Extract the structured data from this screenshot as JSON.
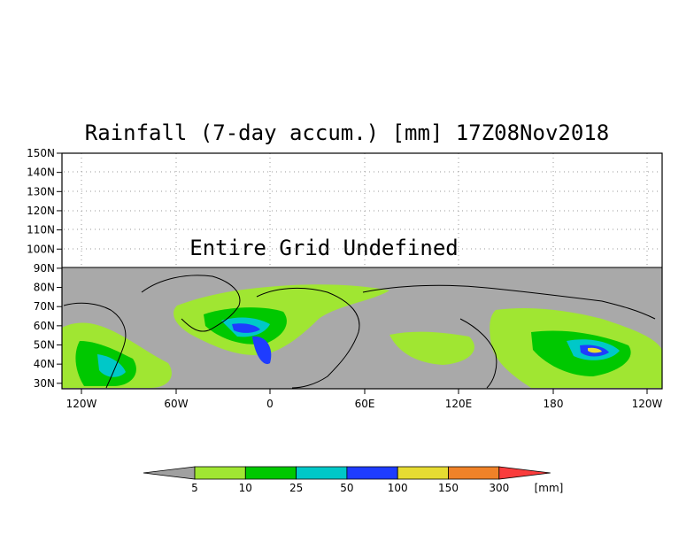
{
  "title": "Rainfall (7-day accum.) [mm] 17Z08Nov2018",
  "annotation": "Entire Grid Undefined",
  "map": {
    "undefined_color": "#a9a9a9",
    "y_ticks": [
      "150N",
      "140N",
      "130N",
      "120N",
      "110N",
      "100N",
      "90N",
      "80N",
      "70N",
      "60N",
      "50N",
      "40N",
      "30N"
    ],
    "x_ticks": [
      "120W",
      "60W",
      "0",
      "60E",
      "120E",
      "180",
      "120W"
    ]
  },
  "legend": {
    "unit": "[mm]",
    "levels": [
      "5",
      "10",
      "25",
      "50",
      "100",
      "150",
      "300"
    ],
    "colors": [
      "#a0a0a0",
      "#a0e632",
      "#00c800",
      "#00c8c8",
      "#1e3cff",
      "#e6dc32",
      "#f08228",
      "#fa3c3c"
    ]
  }
}
